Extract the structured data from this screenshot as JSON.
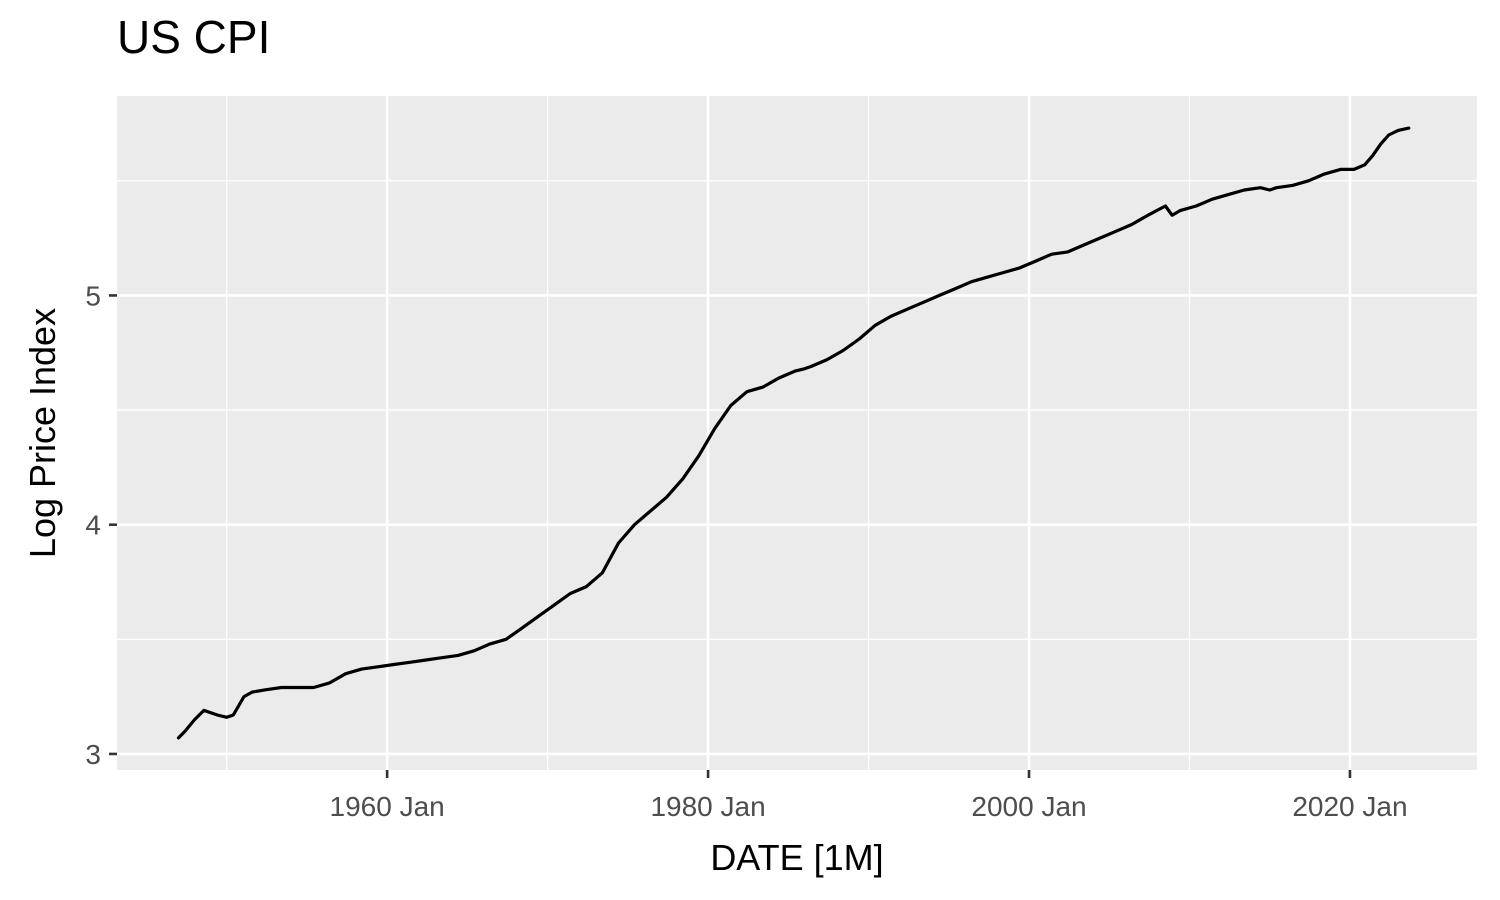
{
  "chart_data": {
    "type": "line",
    "title": "US CPI",
    "xlabel": "DATE [1M]",
    "ylabel": "Log Price Index",
    "x_ticks": [
      "1960 Jan",
      "1980 Jan",
      "2000 Jan",
      "2020 Jan"
    ],
    "y_ticks": [
      "3",
      "4",
      "5"
    ],
    "xlim": [
      "1943-03",
      "2027-12"
    ],
    "ylim": [
      2.93,
      5.87
    ],
    "grid": true,
    "line_color": "#000000",
    "panel_color": "#ebebeb",
    "grid_color": "#ffffff",
    "series": [
      {
        "x": [
          "1947-01",
          "1947-06",
          "1948-01",
          "1948-08",
          "1949-06",
          "1950-01",
          "1950-06",
          "1951-02",
          "1951-08",
          "1952-06",
          "1953-06",
          "1954-06",
          "1955-06",
          "1956-06",
          "1957-06",
          "1958-06",
          "1959-06",
          "1960-06",
          "1961-06",
          "1962-06",
          "1963-06",
          "1964-06",
          "1965-06",
          "1966-06",
          "1967-06",
          "1968-06",
          "1969-06",
          "1970-06",
          "1971-06",
          "1972-06",
          "1973-06",
          "1974-06",
          "1975-06",
          "1976-06",
          "1977-06",
          "1978-06",
          "1979-06",
          "1980-06",
          "1981-06",
          "1982-06",
          "1983-06",
          "1984-06",
          "1985-06",
          "1986-01",
          "1986-06",
          "1987-06",
          "1988-06",
          "1989-06",
          "1990-06",
          "1991-06",
          "1992-06",
          "1993-06",
          "1994-06",
          "1995-06",
          "1996-06",
          "1997-06",
          "1998-06",
          "1999-06",
          "2000-06",
          "2001-06",
          "2002-06",
          "2003-06",
          "2004-06",
          "2005-06",
          "2006-06",
          "2007-06",
          "2008-07",
          "2008-12",
          "2009-06",
          "2010-06",
          "2011-06",
          "2012-06",
          "2013-06",
          "2014-06",
          "2015-01",
          "2015-06",
          "2016-06",
          "2017-06",
          "2018-06",
          "2019-06",
          "2020-04",
          "2020-12",
          "2021-06",
          "2021-12",
          "2022-06",
          "2023-01",
          "2023-09"
        ],
        "y": [
          3.07,
          3.1,
          3.15,
          3.19,
          3.17,
          3.16,
          3.17,
          3.25,
          3.27,
          3.28,
          3.29,
          3.29,
          3.29,
          3.31,
          3.35,
          3.37,
          3.38,
          3.39,
          3.4,
          3.41,
          3.42,
          3.43,
          3.45,
          3.48,
          3.5,
          3.55,
          3.6,
          3.65,
          3.7,
          3.73,
          3.79,
          3.92,
          4.0,
          4.06,
          4.12,
          4.2,
          4.3,
          4.42,
          4.52,
          4.58,
          4.6,
          4.64,
          4.67,
          4.68,
          4.69,
          4.72,
          4.76,
          4.81,
          4.87,
          4.91,
          4.94,
          4.97,
          5.0,
          5.03,
          5.06,
          5.08,
          5.1,
          5.12,
          5.15,
          5.18,
          5.19,
          5.22,
          5.25,
          5.28,
          5.31,
          5.35,
          5.39,
          5.35,
          5.37,
          5.39,
          5.42,
          5.44,
          5.46,
          5.47,
          5.46,
          5.47,
          5.48,
          5.5,
          5.53,
          5.55,
          5.55,
          5.57,
          5.61,
          5.66,
          5.7,
          5.72,
          5.73
        ]
      }
    ]
  }
}
